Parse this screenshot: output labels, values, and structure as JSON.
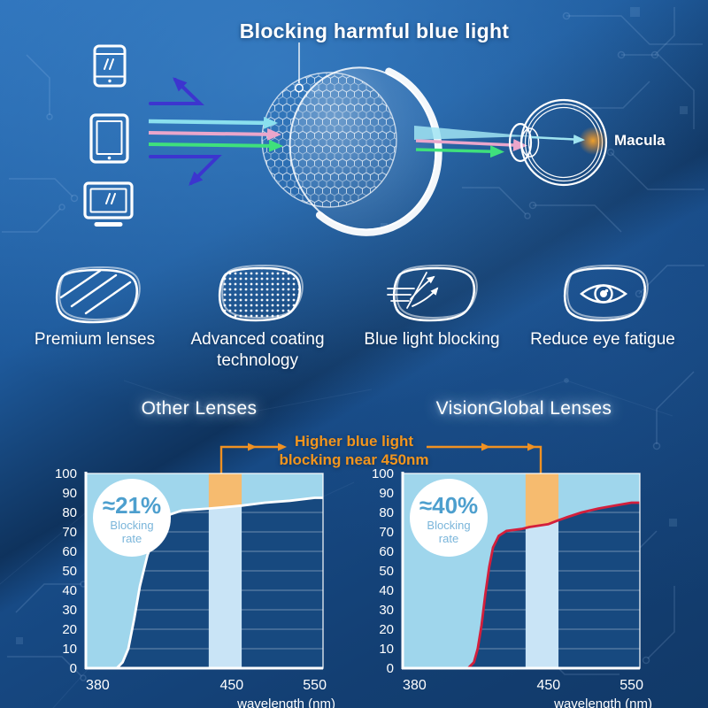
{
  "infographic": {
    "title": "Blocking harmful blue light",
    "macula_label": "Macula",
    "device_icons": [
      "smartphone-icon",
      "tablet-icon",
      "monitor-icon"
    ],
    "beam_colors": {
      "reflected_blue": "#3c35cf",
      "cyan": "#8adfee",
      "pink": "#eaa6cb",
      "green": "#3fe07c"
    }
  },
  "features": [
    {
      "label": "Premium lenses",
      "icon": "lens-stripes-icon"
    },
    {
      "label": "Advanced coating technology",
      "icon": "lens-coating-icon"
    },
    {
      "label": "Blue light blocking",
      "icon": "lens-blue-block-icon"
    },
    {
      "label": "Reduce eye fatigue",
      "icon": "lens-eye-icon"
    }
  ],
  "annotation": {
    "line1": "Higher blue light",
    "line2": "blocking near 450nm",
    "color": "#f09122"
  },
  "chart_data": [
    {
      "type": "area",
      "title": "Other Lenses",
      "xlabel": "wavelength (nm)",
      "ylabel": "",
      "xlim": [
        380,
        550
      ],
      "ylim": [
        0,
        100
      ],
      "xticks": [
        380,
        450,
        550
      ],
      "yticks": [
        0,
        10,
        20,
        30,
        40,
        50,
        60,
        70,
        80,
        90,
        100
      ],
      "grid": true,
      "legend": false,
      "badge": {
        "value": "≈21%",
        "label_line1": "Blocking",
        "label_line2": "rate"
      },
      "plot_bg": "#17497f",
      "area_above_color": "#9fd6ec",
      "highlight_band": {
        "x0": 438,
        "x1": 462,
        "below_color": "#c9e4f6",
        "above_color": "#f6bb6f"
      },
      "series": [
        {
          "name": "blocking rate (%)",
          "color": "#ffffff",
          "points": [
            [
              380,
              0
            ],
            [
              390,
              0
            ],
            [
              393,
              3
            ],
            [
              396,
              10
            ],
            [
              399,
              25
            ],
            [
              402,
              42
            ],
            [
              406,
              58
            ],
            [
              410,
              68
            ],
            [
              414,
              75
            ],
            [
              418,
              79
            ],
            [
              424,
              81
            ],
            [
              438,
              82
            ],
            [
              450,
              83
            ],
            [
              462,
              83.5
            ],
            [
              490,
              85
            ],
            [
              520,
              86
            ],
            [
              550,
              87.5
            ]
          ]
        }
      ]
    },
    {
      "type": "area",
      "title": "VisionGlobal Lenses",
      "xlabel": "wavelength (nm)",
      "ylabel": "",
      "xlim": [
        380,
        550
      ],
      "ylim": [
        0,
        100
      ],
      "xticks": [
        380,
        450,
        550
      ],
      "yticks": [
        0,
        10,
        20,
        30,
        40,
        50,
        60,
        70,
        80,
        90,
        100
      ],
      "grid": true,
      "legend": false,
      "badge": {
        "value": "≈40%",
        "label_line1": "Blocking",
        "label_line2": "rate"
      },
      "plot_bg": "#17497f",
      "area_above_color": "#9fd6ec",
      "highlight_band": {
        "x0": 438,
        "x1": 462,
        "below_color": "#c9e4f6",
        "above_color": "#f6bb6f"
      },
      "series": [
        {
          "name": "blocking rate (%)",
          "color": "#d31f3c",
          "points": [
            [
              380,
              0
            ],
            [
              408,
              0
            ],
            [
              411,
              3
            ],
            [
              413,
              10
            ],
            [
              415,
              22
            ],
            [
              417,
              38
            ],
            [
              419,
              52
            ],
            [
              421,
              62
            ],
            [
              424,
              68
            ],
            [
              428,
              70.5
            ],
            [
              436,
              71.5
            ],
            [
              440,
              72.5
            ],
            [
              450,
              74
            ],
            [
              462,
              76
            ],
            [
              472,
              77.5
            ],
            [
              490,
              80
            ],
            [
              510,
              82
            ],
            [
              530,
              83.5
            ],
            [
              550,
              85
            ]
          ]
        }
      ]
    }
  ]
}
